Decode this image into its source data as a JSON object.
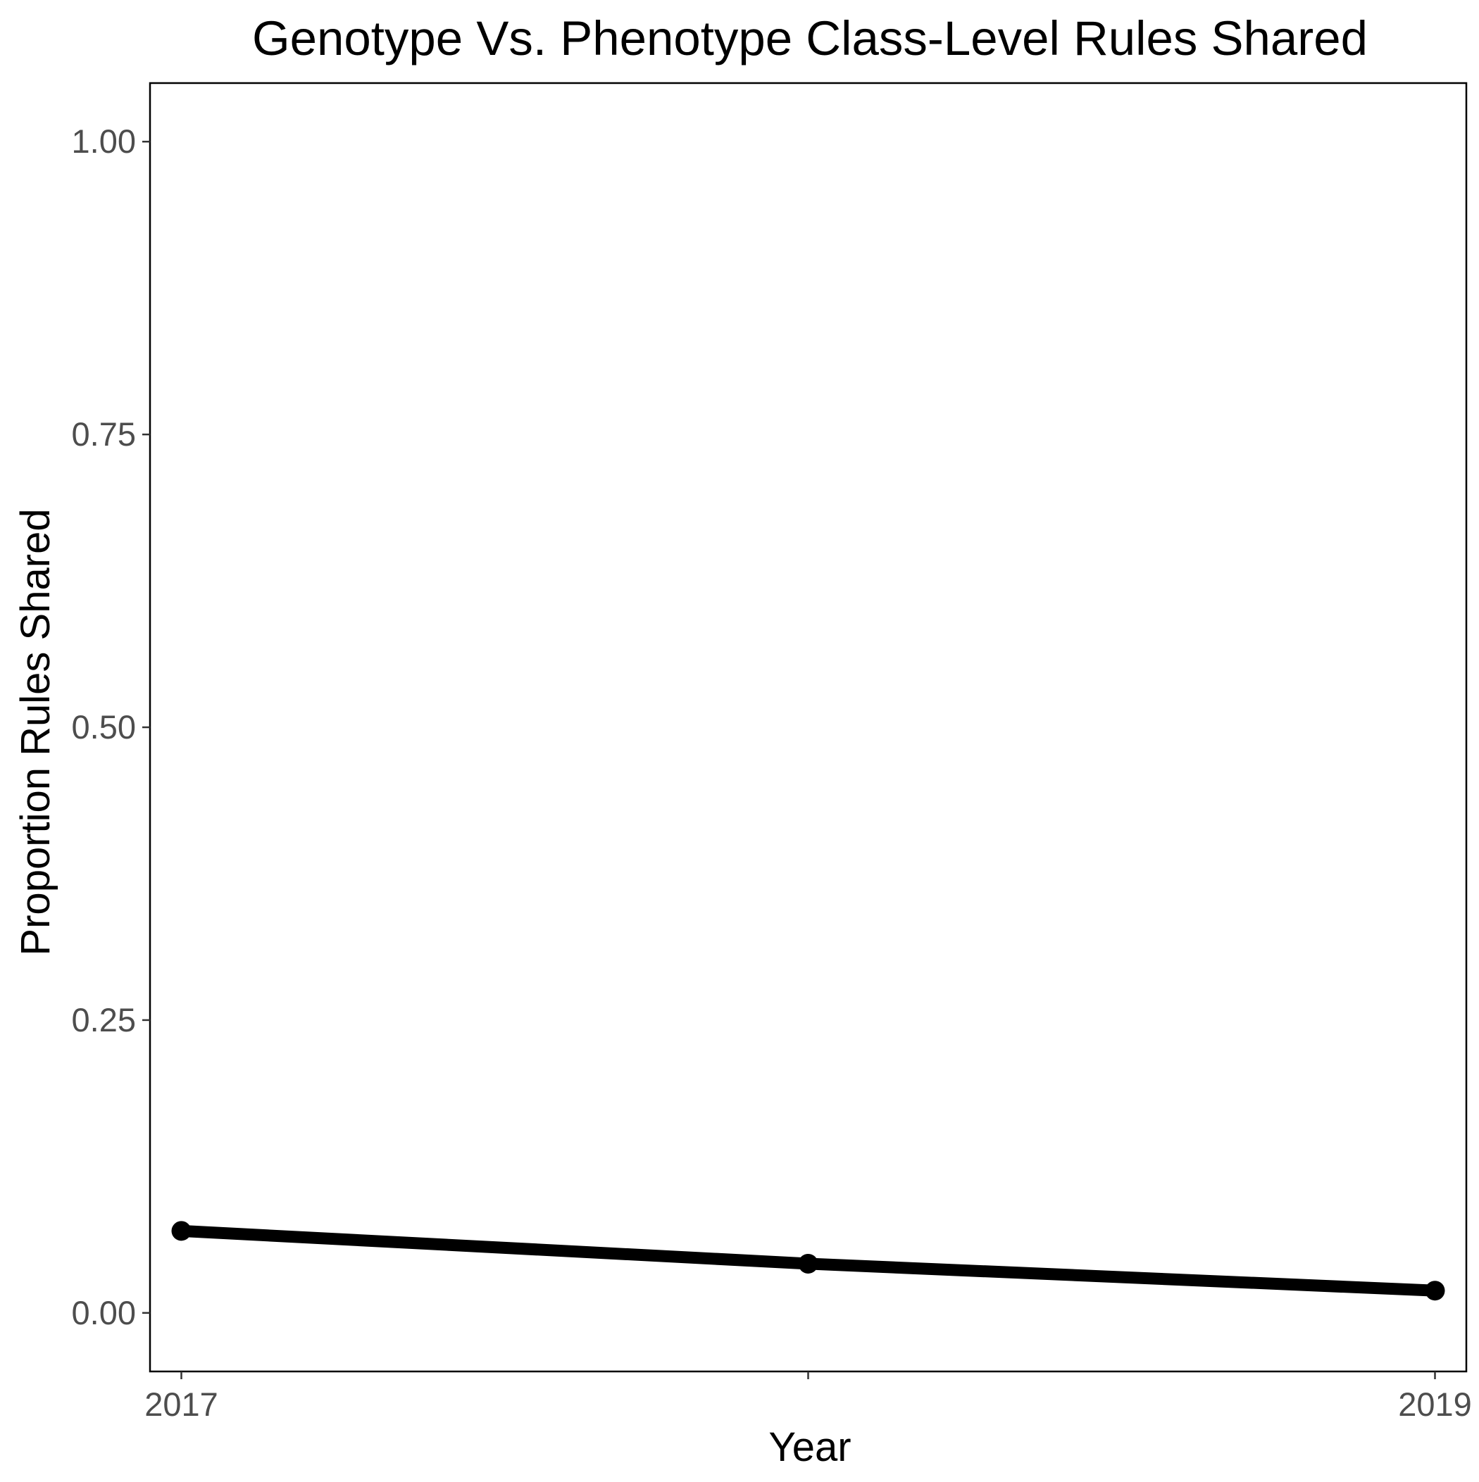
{
  "chart_data": {
    "type": "line",
    "title": "Genotype Vs. Phenotype Class-Level Rules Shared",
    "xlabel": "Year",
    "ylabel": "Proportion Rules Shared",
    "x": [
      2017,
      2018,
      2019
    ],
    "x_tick_labels": [
      {
        "value": 2017,
        "label": "2017"
      },
      {
        "value": 2019,
        "label": "2019"
      }
    ],
    "y_ticks": [
      {
        "value": 0,
        "label": "0.00"
      },
      {
        "value": 0.25,
        "label": "0.25"
      },
      {
        "value": 0.5,
        "label": "0.50"
      },
      {
        "value": 0.75,
        "label": "0.75"
      },
      {
        "value": 1,
        "label": "1.00"
      }
    ],
    "xlim": [
      2016.95,
      2019.05
    ],
    "ylim": [
      -0.05,
      1.05
    ],
    "grid": false,
    "series": [
      {
        "values": [
          0.07,
          0.042,
          0.019
        ],
        "color": "#000000"
      }
    ]
  }
}
